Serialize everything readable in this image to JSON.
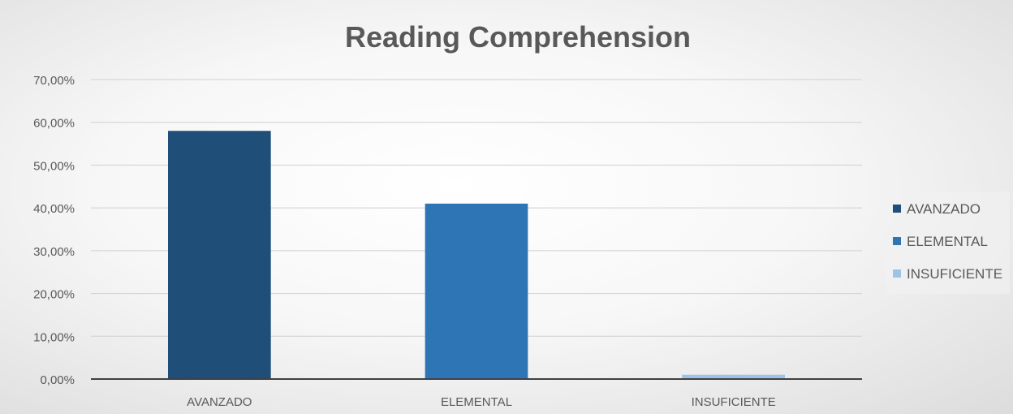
{
  "chart_data": {
    "type": "bar",
    "title": "Reading Comprehension",
    "categories": [
      "AVANZADO",
      "ELEMENTAL",
      "INSUFICIENTE"
    ],
    "values": [
      58.0,
      41.0,
      1.0
    ],
    "colors": [
      "#1f4e79",
      "#2e75b6",
      "#9dc3e6"
    ],
    "ylim": [
      0,
      70
    ],
    "yticks": [
      0,
      10,
      20,
      30,
      40,
      50,
      60,
      70
    ],
    "ytick_labels": [
      "0,00%",
      "10,00%",
      "20,00%",
      "30,00%",
      "40,00%",
      "50,00%",
      "60,00%",
      "70,00%"
    ],
    "grid": true,
    "legend": {
      "position": "right",
      "entries": [
        "AVANZADO",
        "ELEMENTAL",
        "INSUFICIENTE"
      ]
    }
  }
}
